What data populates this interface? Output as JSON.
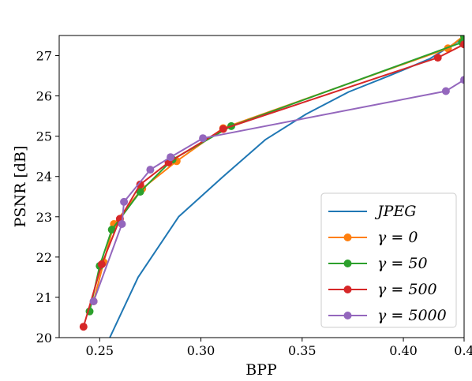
{
  "chart_data": {
    "type": "line",
    "title": "",
    "xlabel": "BPP",
    "ylabel": "PSNR [dB]",
    "xlim": [
      0.23,
      0.43
    ],
    "ylim": [
      20,
      27.5
    ],
    "xticks": [
      0.25,
      0.3,
      0.35,
      0.4,
      0.43
    ],
    "xtick_labels": [
      "0.25",
      "0.30",
      "0.35",
      "0.40",
      "0.4"
    ],
    "yticks": [
      20,
      21,
      22,
      23,
      24,
      25,
      26,
      27
    ],
    "ytick_labels": [
      "20",
      "21",
      "22",
      "23",
      "24",
      "25",
      "26",
      "27"
    ],
    "grid": false,
    "legend_position": "lower-right",
    "series": [
      {
        "name": "JPEG",
        "color": "#1f77b4",
        "marker": false,
        "points": [
          [
            0.255,
            20.0
          ],
          [
            0.269,
            21.5
          ],
          [
            0.289,
            23.0
          ],
          [
            0.311,
            24.0
          ],
          [
            0.332,
            24.92
          ],
          [
            0.352,
            25.55
          ],
          [
            0.373,
            26.1
          ],
          [
            0.393,
            26.5
          ],
          [
            0.413,
            26.92
          ],
          [
            0.43,
            27.45
          ]
        ]
      },
      {
        "name": "γ = 0",
        "color": "#ff7f0e",
        "marker": true,
        "points": [
          [
            0.247,
            20.9
          ],
          [
            0.252,
            21.87
          ],
          [
            0.257,
            22.82
          ],
          [
            0.271,
            23.7
          ],
          [
            0.288,
            24.38
          ],
          [
            0.311,
            25.2
          ],
          [
            0.422,
            27.18
          ],
          [
            0.43,
            27.5
          ]
        ]
      },
      {
        "name": "γ = 50",
        "color": "#2ca02c",
        "marker": true,
        "points": [
          [
            0.245,
            20.65
          ],
          [
            0.25,
            21.78
          ],
          [
            0.256,
            22.68
          ],
          [
            0.27,
            23.62
          ],
          [
            0.286,
            24.42
          ],
          [
            0.315,
            25.25
          ],
          [
            0.429,
            27.33
          ],
          [
            0.43,
            27.48
          ]
        ]
      },
      {
        "name": "γ = 500",
        "color": "#d62728",
        "marker": true,
        "points": [
          [
            0.242,
            20.27
          ],
          [
            0.251,
            21.82
          ],
          [
            0.26,
            22.95
          ],
          [
            0.27,
            23.8
          ],
          [
            0.284,
            24.35
          ],
          [
            0.311,
            25.18
          ],
          [
            0.417,
            26.95
          ],
          [
            0.43,
            27.28
          ]
        ]
      },
      {
        "name": "γ = 5000",
        "color": "#9467bd",
        "marker": true,
        "points": [
          [
            0.247,
            20.9
          ],
          [
            0.261,
            22.82
          ],
          [
            0.262,
            23.37
          ],
          [
            0.275,
            24.17
          ],
          [
            0.285,
            24.48
          ],
          [
            0.301,
            24.95
          ],
          [
            0.421,
            26.12
          ],
          [
            0.43,
            26.4
          ]
        ]
      }
    ]
  }
}
